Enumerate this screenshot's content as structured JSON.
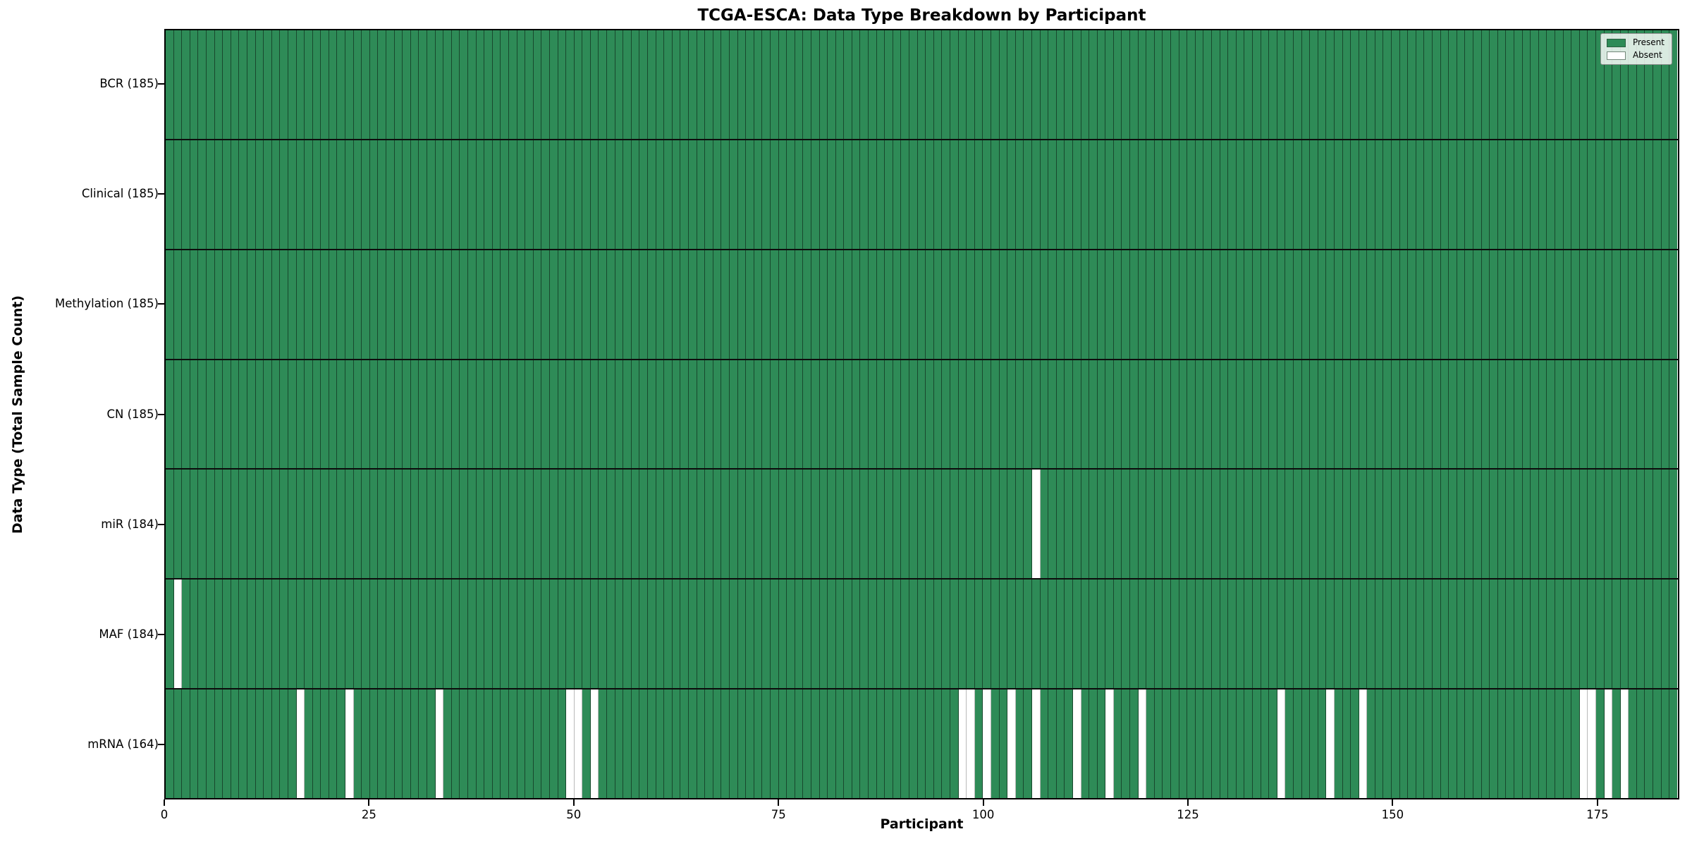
{
  "chart_data": {
    "type": "heatmap",
    "title": "TCGA-ESCA: Data Type Breakdown by Participant",
    "xlabel": "Participant",
    "ylabel": "Data Type (Total Sample Count)",
    "n_participants": 185,
    "x_ticks": [
      0,
      25,
      50,
      75,
      100,
      125,
      150,
      175
    ],
    "cell_values_meaning": {
      "present": "Present",
      "absent": "Absent"
    },
    "colors": {
      "present": "#2e8b57",
      "absent": "#ffffff",
      "grid_line": "rgba(0,0,0,0.48)",
      "row_divider": "#0d0d0d",
      "spine": "#000000"
    },
    "legend": [
      {
        "label": "Present",
        "color": "#2e8b57"
      },
      {
        "label": "Absent",
        "color": "#ffffff"
      }
    ],
    "rows": [
      {
        "label": "BCR (185)",
        "data_type": "BCR",
        "total": 185,
        "absent_participants": []
      },
      {
        "label": "Clinical (185)",
        "data_type": "Clinical",
        "total": 185,
        "absent_participants": []
      },
      {
        "label": "Methylation (185)",
        "data_type": "Methylation",
        "total": 185,
        "absent_participants": []
      },
      {
        "label": "CN (185)",
        "data_type": "CN",
        "total": 185,
        "absent_participants": []
      },
      {
        "label": "miR (184)",
        "data_type": "miR",
        "total": 184,
        "absent_participants": [
          106
        ]
      },
      {
        "label": "MAF (184)",
        "data_type": "MAF",
        "total": 184,
        "absent_participants": [
          1
        ]
      },
      {
        "label": "mRNA (164)",
        "data_type": "mRNA",
        "total": 164,
        "absent_participants": [
          16,
          22,
          33,
          49,
          50,
          52,
          97,
          98,
          100,
          103,
          106,
          111,
          115,
          119,
          136,
          142,
          146,
          173,
          174,
          176,
          178
        ]
      }
    ]
  }
}
